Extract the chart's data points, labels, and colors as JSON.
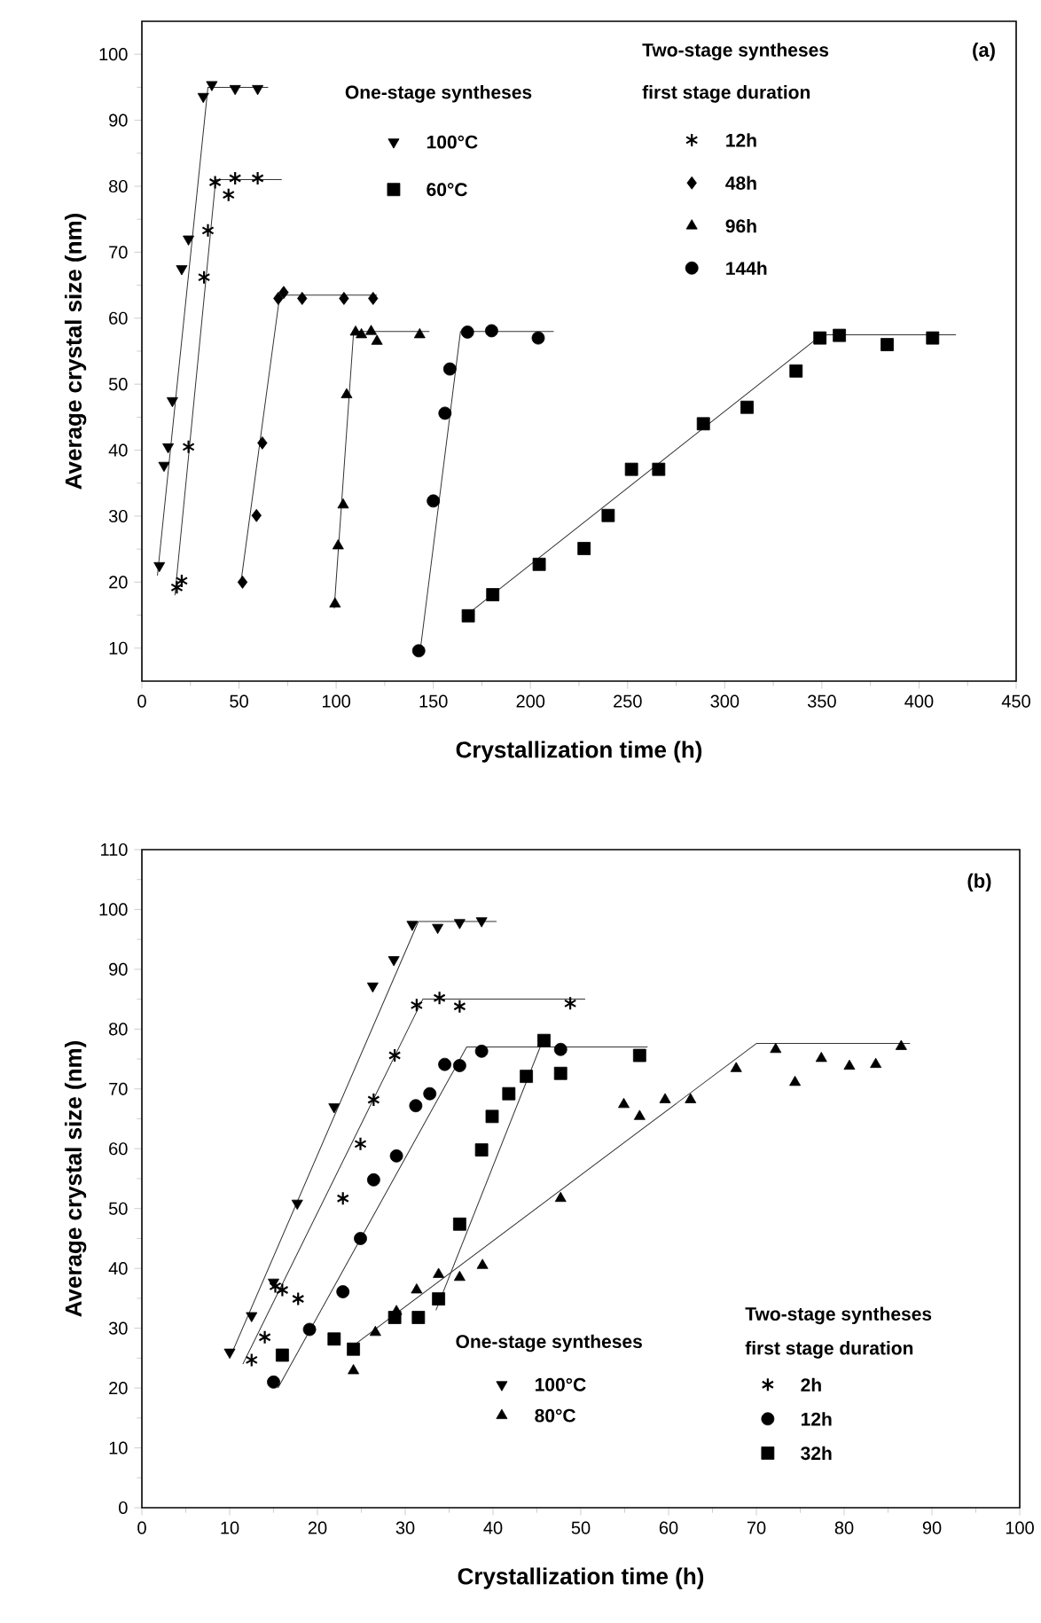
{
  "chart_data": [
    {
      "type": "scatter",
      "xlabel": "Crystallization time (h)",
      "ylabel": "Average crystal size (nm)",
      "xlim": [
        0,
        450
      ],
      "ylim": [
        5,
        105
      ],
      "xticks": [
        0,
        50,
        100,
        150,
        200,
        250,
        300,
        350,
        400,
        450
      ],
      "yticks": [
        10,
        20,
        30,
        40,
        50,
        60,
        70,
        80,
        90,
        100
      ],
      "legend": "top",
      "annotations": [
        "One-stage syntheses",
        "Two-stage syntheses",
        "first stage duration",
        "(a)"
      ],
      "series": [
        {
          "name": "100°C",
          "marker": "triangle-down",
          "color": "#000000",
          "x": [
            9,
            11.4,
            13.5,
            15.7,
            20.5,
            24,
            31.6,
            36,
            48,
            59.6
          ],
          "values": [
            22.5,
            37.7,
            40.5,
            47.5,
            67.5,
            72,
            93.6,
            95.4,
            94.8,
            94.8
          ]
        },
        {
          "name": "60°C",
          "marker": "square",
          "color": "#000000",
          "x": [
            168,
            180.6,
            204.5,
            227.6,
            240,
            252,
            266,
            289,
            311.5,
            336.7,
            349,
            359,
            383.6,
            407
          ],
          "values": [
            14.9,
            18.1,
            22.7,
            25.1,
            30.1,
            37.1,
            37.1,
            44,
            46.5,
            52,
            57,
            57.4,
            56,
            57
          ]
        },
        {
          "name": "12h",
          "marker": "cross",
          "color": "#000000",
          "x": [
            18,
            20.5,
            24,
            32,
            34,
            37.7,
            44.6,
            48,
            59.6
          ],
          "values": [
            19.2,
            20.2,
            40.5,
            66.2,
            73.3,
            80.6,
            78.7,
            81.2,
            81.2
          ]
        },
        {
          "name": "48h",
          "marker": "diamond",
          "color": "#000000",
          "x": [
            51.8,
            59,
            62,
            70.2,
            73,
            82.5,
            104,
            119
          ],
          "values": [
            20,
            30.1,
            41.1,
            63,
            63.9,
            63,
            63,
            63
          ]
        },
        {
          "name": "96h",
          "marker": "triangle",
          "color": "#000000",
          "x": [
            99.4,
            101,
            103.6,
            105.4,
            110,
            113,
            118,
            121,
            143
          ],
          "values": [
            16.7,
            25.5,
            31.7,
            48.4,
            57.9,
            57.5,
            58,
            56.5,
            57.5
          ]
        },
        {
          "name": "144h",
          "marker": "circle",
          "color": "#000000",
          "x": [
            142.5,
            150,
            156,
            158.5,
            167.6,
            180,
            204
          ],
          "values": [
            9.6,
            32.3,
            45.6,
            52.3,
            57.9,
            58.1,
            57
          ]
        },
        {
          "type": "line",
          "marker": "none",
          "color": "#333333",
          "x": [
            8,
            34,
            65
          ],
          "values": [
            21,
            95,
            95
          ]
        },
        {
          "type": "line",
          "marker": "none",
          "color": "#333333",
          "x": [
            17,
            38,
            72
          ],
          "values": [
            18,
            81,
            81
          ]
        },
        {
          "type": "line",
          "marker": "none",
          "color": "#333333",
          "x": [
            51,
            71,
            121
          ],
          "values": [
            20,
            63.5,
            63.5
          ]
        },
        {
          "type": "line",
          "marker": "none",
          "color": "#333333",
          "x": [
            99,
            109,
            148
          ],
          "values": [
            16,
            58,
            58
          ]
        },
        {
          "type": "line",
          "marker": "none",
          "color": "#333333",
          "x": [
            143,
            164,
            212
          ],
          "values": [
            9,
            58,
            58
          ]
        },
        {
          "type": "line",
          "marker": "none",
          "color": "#333333",
          "x": [
            167,
            350,
            419
          ],
          "values": [
            15,
            57.5,
            57.5
          ]
        }
      ]
    },
    {
      "type": "scatter",
      "xlabel": "Crystallization time (h)",
      "ylabel": "Average crystal size (nm)",
      "xlim": [
        0,
        100
      ],
      "ylim": [
        0,
        110
      ],
      "xticks": [
        0,
        10,
        20,
        30,
        40,
        50,
        60,
        70,
        80,
        90,
        100
      ],
      "yticks": [
        0,
        10,
        20,
        30,
        40,
        50,
        60,
        70,
        80,
        90,
        100,
        110
      ],
      "legend": "bottom right",
      "annotations": [
        "One-stage syntheses",
        "Two-stage syntheses",
        "first stage duration",
        "(b)"
      ],
      "series": [
        {
          "name": "100°C",
          "marker": "triangle-down",
          "color": "#000000",
          "x": [
            10,
            12.5,
            15,
            17.7,
            21.9,
            26.3,
            28.7,
            30.8,
            33.7,
            36.2,
            38.7
          ],
          "values": [
            26,
            32.1,
            37.7,
            50.9,
            67,
            87.2,
            91.6,
            97.5,
            97,
            97.8,
            98.1
          ]
        },
        {
          "name": "80°C",
          "marker": "triangle",
          "color": "#000000",
          "x": [
            24.1,
            26.6,
            29,
            31.3,
            33.8,
            36.2,
            38.8,
            47.7,
            54.9,
            56.7,
            59.6,
            62.5,
            67.7,
            72.2,
            74.4,
            77.4,
            80.6,
            83.6,
            86.5
          ],
          "values": [
            22.9,
            29.3,
            32.8,
            36.4,
            39,
            38.5,
            40.5,
            51.7,
            67.4,
            65.4,
            68.2,
            68.2,
            73.4,
            76.6,
            71.1,
            75.1,
            73.8,
            74.1,
            77.1
          ]
        },
        {
          "name": "2h",
          "marker": "cross",
          "color": "#000000",
          "x": [
            12.5,
            14,
            15.2,
            16,
            17.8,
            22.9,
            24.9,
            26.4,
            28.8,
            31.3,
            33.9,
            36.2,
            48.8
          ],
          "values": [
            24.7,
            28.5,
            37,
            36.4,
            34.9,
            51.7,
            60.8,
            68.2,
            75.6,
            84,
            85.2,
            83.8,
            84.3
          ]
        },
        {
          "name": "12h",
          "marker": "circle",
          "color": "#000000",
          "x": [
            15,
            19.1,
            22.9,
            24.9,
            26.4,
            29,
            31.2,
            32.8,
            34.5,
            36.2,
            38.7,
            47.7
          ],
          "values": [
            21,
            29.8,
            36.1,
            45,
            54.8,
            58.8,
            67.2,
            69.2,
            74.1,
            73.9,
            76.3,
            76.6
          ]
        },
        {
          "name": "32h",
          "marker": "square",
          "color": "#000000",
          "x": [
            16,
            21.9,
            24.1,
            28.8,
            31.5,
            33.8,
            36.2,
            38.7,
            39.9,
            41.8,
            43.8,
            45.8,
            47.7,
            56.7
          ],
          "values": [
            25.5,
            28.2,
            26.5,
            31.8,
            31.8,
            34.9,
            47.4,
            59.8,
            65.4,
            69.2,
            72.1,
            78.1,
            72.6,
            75.6
          ]
        },
        {
          "type": "line",
          "marker": "none",
          "color": "#333333",
          "x": [
            10,
            31.5,
            40.4
          ],
          "values": [
            25,
            98,
            98
          ]
        },
        {
          "type": "line",
          "marker": "none",
          "color": "#333333",
          "x": [
            24,
            70,
            87.5
          ],
          "values": [
            27,
            77.6,
            77.6
          ]
        },
        {
          "type": "line",
          "marker": "none",
          "color": "#333333",
          "x": [
            11.5,
            32,
            50.5
          ],
          "values": [
            24,
            85,
            85
          ]
        },
        {
          "type": "line",
          "marker": "none",
          "color": "#333333",
          "x": [
            15.5,
            37,
            57.6
          ],
          "values": [
            20,
            77,
            77
          ]
        },
        {
          "type": "line",
          "marker": "none",
          "color": "#333333",
          "x": [
            33.5,
            45.5
          ],
          "values": [
            33,
            77.5
          ]
        }
      ]
    }
  ]
}
